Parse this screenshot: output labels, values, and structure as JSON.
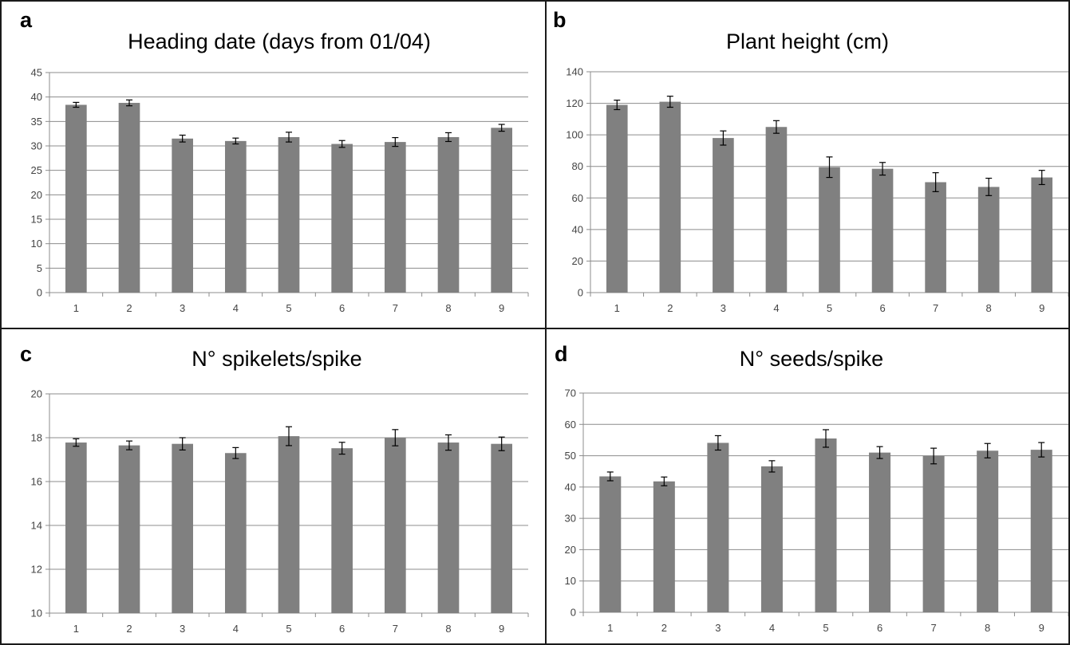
{
  "chart_data": [
    {
      "type": "bar",
      "panel_letter": "a",
      "title": "Heading date (days from 01/04)",
      "categories": [
        "1",
        "2",
        "3",
        "4",
        "5",
        "6",
        "7",
        "8",
        "9"
      ],
      "values": [
        38.4,
        38.8,
        31.5,
        31.0,
        31.8,
        30.4,
        30.8,
        31.8,
        33.7
      ],
      "errors": [
        0.5,
        0.6,
        0.7,
        0.6,
        1.0,
        0.7,
        0.9,
        0.9,
        0.7
      ],
      "ylim": [
        0,
        45
      ],
      "yticks": [
        0,
        5,
        10,
        15,
        20,
        25,
        30,
        35,
        40,
        45
      ],
      "grid": true,
      "bar_color": "#808080"
    },
    {
      "type": "bar",
      "panel_letter": "b",
      "title": "Plant height (cm)",
      "categories": [
        "1",
        "2",
        "3",
        "4",
        "5",
        "6",
        "7",
        "8",
        "9"
      ],
      "values": [
        119,
        121,
        98,
        105,
        79.5,
        78.5,
        70,
        67,
        73
      ],
      "errors": [
        3,
        3.5,
        4.5,
        4,
        6.5,
        4,
        6,
        5.5,
        4.5
      ],
      "ylim": [
        0,
        140
      ],
      "yticks": [
        0,
        20,
        40,
        60,
        80,
        100,
        120,
        140
      ],
      "grid": true,
      "bar_color": "#808080"
    },
    {
      "type": "bar",
      "panel_letter": "c",
      "title": "N° spikelets/spike",
      "categories": [
        "1",
        "2",
        "3",
        "4",
        "5",
        "6",
        "7",
        "8",
        "9"
      ],
      "values": [
        17.78,
        17.65,
        17.72,
        17.3,
        18.07,
        17.52,
        18.0,
        17.78,
        17.72
      ],
      "errors": [
        0.17,
        0.2,
        0.28,
        0.25,
        0.43,
        0.27,
        0.37,
        0.35,
        0.31
      ],
      "ylim": [
        10,
        20
      ],
      "yticks": [
        10,
        12,
        14,
        16,
        18,
        20
      ],
      "grid": true,
      "bar_color": "#808080"
    },
    {
      "type": "bar",
      "panel_letter": "d",
      "title": "N° seeds/spike",
      "categories": [
        "1",
        "2",
        "3",
        "4",
        "5",
        "6",
        "7",
        "8",
        "9"
      ],
      "values": [
        43.4,
        41.8,
        54.1,
        46.6,
        55.5,
        51.0,
        49.9,
        51.6,
        51.9
      ],
      "errors": [
        1.4,
        1.4,
        2.3,
        1.8,
        2.8,
        1.9,
        2.5,
        2.3,
        2.3
      ],
      "ylim": [
        0,
        70
      ],
      "yticks": [
        0,
        10,
        20,
        30,
        40,
        50,
        60,
        70
      ],
      "grid": true,
      "bar_color": "#808080"
    }
  ]
}
